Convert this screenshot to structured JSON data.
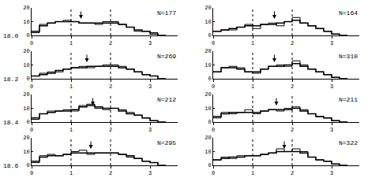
{
  "chart_data": [
    {
      "type": "histogram",
      "row_label": "18.0",
      "n_label": "N=177",
      "arrow_x": 1.25,
      "bins": [
        0,
        0.2,
        0.4,
        0.6,
        0.8,
        1.0,
        1.2,
        1.4,
        1.6,
        1.8,
        2.0,
        2.2,
        2.4,
        2.6,
        2.8,
        3.0,
        3.2,
        3.4
      ],
      "series": [
        {
          "values": [
            2,
            8,
            9,
            10,
            11,
            10,
            9,
            9,
            8,
            10,
            10,
            8,
            6,
            3,
            3,
            2,
            0
          ]
        },
        {
          "values": [
            3,
            7,
            9,
            10,
            10,
            10,
            9,
            9,
            9,
            9,
            9,
            8,
            6,
            4,
            3,
            1,
            0
          ]
        }
      ],
      "reference_lines": [
        1,
        2
      ],
      "xlim": [
        0,
        3.7
      ],
      "ylim": [
        0,
        20
      ],
      "xticks": [
        0,
        1,
        2,
        3
      ],
      "yticks": [
        0,
        10,
        20
      ],
      "color": "#000000"
    },
    {
      "type": "histogram",
      "n_label": "N=164",
      "arrow_x": 1.55,
      "bins": [
        0,
        0.2,
        0.4,
        0.6,
        0.8,
        1.0,
        1.2,
        1.4,
        1.6,
        1.8,
        2.0,
        2.2,
        2.4,
        2.6,
        2.8,
        3.0,
        3.2,
        3.4
      ],
      "series": [
        {
          "values": [
            3,
            4,
            4,
            6,
            8,
            5,
            8,
            9,
            7,
            10,
            13,
            9,
            7,
            5,
            3,
            1,
            0
          ]
        },
        {
          "values": [
            3,
            4,
            5,
            6,
            7,
            7,
            8,
            8,
            9,
            10,
            11,
            9,
            7,
            5,
            3,
            1,
            0
          ]
        }
      ],
      "reference_lines": [
        1,
        2
      ],
      "xlim": [
        0,
        3.7
      ],
      "ylim": [
        0,
        20
      ],
      "xticks": [
        0,
        1,
        2,
        3
      ],
      "yticks": [
        0,
        10,
        20
      ],
      "color": "#000000"
    },
    {
      "type": "histogram",
      "row_label": "18.2",
      "n_label": "N=269",
      "arrow_x": 1.4,
      "bins": [
        0,
        0.2,
        0.4,
        0.6,
        0.8,
        1.0,
        1.2,
        1.4,
        1.6,
        1.8,
        2.0,
        2.2,
        2.4,
        2.6,
        2.8,
        3.0,
        3.2,
        3.4
      ],
      "series": [
        {
          "values": [
            2,
            4,
            5,
            5,
            7,
            8,
            9,
            8,
            9,
            10,
            10,
            9,
            7,
            5,
            3,
            2,
            0
          ]
        },
        {
          "values": [
            2,
            3,
            4,
            6,
            7,
            8,
            8,
            9,
            9,
            9,
            9,
            8,
            7,
            5,
            3,
            2,
            0
          ]
        }
      ],
      "reference_lines": [
        1,
        2
      ],
      "xlim": [
        0,
        3.7
      ],
      "ylim": [
        0,
        20
      ],
      "xticks": [
        0,
        1,
        2,
        3
      ],
      "yticks": [
        0,
        10,
        20
      ],
      "color": "#000000"
    },
    {
      "type": "histogram",
      "n_label": "N=310",
      "arrow_x": 1.55,
      "bins": [
        0,
        0.2,
        0.4,
        0.6,
        0.8,
        1.0,
        1.2,
        1.4,
        1.6,
        1.8,
        2.0,
        2.2,
        2.4,
        2.6,
        2.8,
        3.0,
        3.2,
        3.4
      ],
      "series": [
        {
          "values": [
            5,
            8,
            9,
            8,
            5,
            4,
            7,
            9,
            10,
            9,
            13,
            10,
            7,
            5,
            3,
            1,
            0
          ]
        },
        {
          "values": [
            5,
            8,
            8,
            7,
            5,
            5,
            7,
            9,
            9,
            10,
            11,
            9,
            7,
            5,
            3,
            1,
            0
          ]
        }
      ],
      "reference_lines": [
        1,
        2
      ],
      "xlim": [
        0,
        3.7
      ],
      "ylim": [
        0,
        20
      ],
      "xticks": [
        0,
        1,
        2,
        3
      ],
      "yticks": [
        0,
        10,
        20
      ],
      "color": "#000000"
    },
    {
      "type": "histogram",
      "row_label": "18.4",
      "n_label": "N=212",
      "arrow_x": 1.55,
      "bins": [
        0,
        0.2,
        0.4,
        0.6,
        0.8,
        1.0,
        1.2,
        1.4,
        1.6,
        1.8,
        2.0,
        2.2,
        2.4,
        2.6,
        2.8,
        3.0,
        3.2,
        3.4
      ],
      "series": [
        {
          "values": [
            2,
            6,
            8,
            8,
            9,
            8,
            12,
            13,
            10,
            9,
            10,
            9,
            7,
            5,
            3,
            1,
            0
          ]
        },
        {
          "values": [
            3,
            6,
            7,
            8,
            8,
            9,
            11,
            12,
            11,
            10,
            10,
            8,
            6,
            5,
            3,
            1,
            0
          ]
        }
      ],
      "reference_lines": [
        1,
        2
      ],
      "xlim": [
        0,
        3.7
      ],
      "ylim": [
        0,
        20
      ],
      "xticks": [
        0,
        1,
        2,
        3
      ],
      "yticks": [
        0,
        10,
        20
      ],
      "color": "#000000"
    },
    {
      "type": "histogram",
      "n_label": "N=211",
      "arrow_x": 1.6,
      "bins": [
        0,
        0.2,
        0.4,
        0.6,
        0.8,
        1.0,
        1.2,
        1.4,
        1.6,
        1.8,
        2.0,
        2.2,
        2.4,
        2.6,
        2.8,
        3.0,
        3.2,
        3.4
      ],
      "series": [
        {
          "values": [
            3,
            7,
            6,
            7,
            9,
            6,
            8,
            9,
            8,
            10,
            11,
            9,
            6,
            4,
            3,
            1,
            0
          ]
        },
        {
          "values": [
            4,
            6,
            7,
            7,
            7,
            7,
            8,
            9,
            9,
            9,
            10,
            8,
            6,
            4,
            3,
            1,
            0
          ]
        }
      ],
      "reference_lines": [
        1,
        2
      ],
      "xlim": [
        0,
        3.7
      ],
      "ylim": [
        0,
        20
      ],
      "xticks": [
        0,
        1,
        2,
        3
      ],
      "yticks": [
        0,
        10,
        20
      ],
      "color": "#000000"
    },
    {
      "type": "histogram",
      "row_label": "18.6",
      "n_label": "N=295",
      "arrow_x": 1.5,
      "bins": [
        0,
        0.2,
        0.4,
        0.6,
        0.8,
        1.0,
        1.2,
        1.4,
        1.6,
        1.8,
        2.0,
        2.2,
        2.4,
        2.6,
        2.8,
        3.0,
        3.2,
        3.4
      ],
      "series": [
        {
          "values": [
            2,
            7,
            8,
            7,
            8,
            10,
            11,
            8,
            9,
            9,
            9,
            8,
            6,
            5,
            3,
            2,
            0
          ]
        },
        {
          "values": [
            3,
            6,
            7,
            7,
            8,
            9,
            9,
            9,
            9,
            9,
            9,
            8,
            7,
            5,
            3,
            2,
            0
          ]
        }
      ],
      "reference_lines": [
        1,
        2
      ],
      "xlim": [
        0,
        3.7
      ],
      "ylim": [
        0,
        20
      ],
      "xticks": [
        0,
        1,
        2,
        3
      ],
      "yticks": [
        0,
        10,
        20
      ],
      "color": "#000000"
    },
    {
      "type": "histogram",
      "n_label": "N=322",
      "arrow_x": 1.8,
      "bins": [
        0,
        0.2,
        0.4,
        0.6,
        0.8,
        1.0,
        1.2,
        1.4,
        1.6,
        1.8,
        2.0,
        2.2,
        2.4,
        2.6,
        2.8,
        3.0,
        3.2,
        3.4
      ],
      "series": [
        {
          "values": [
            4,
            6,
            5,
            7,
            7,
            7,
            8,
            9,
            12,
            10,
            12,
            10,
            6,
            4,
            3,
            1,
            0
          ]
        },
        {
          "values": [
            4,
            5,
            6,
            6,
            7,
            7,
            8,
            9,
            10,
            10,
            10,
            9,
            6,
            4,
            3,
            1,
            0
          ]
        }
      ],
      "reference_lines": [
        1,
        2
      ],
      "xlim": [
        0,
        3.7
      ],
      "ylim": [
        0,
        20
      ],
      "xticks": [
        0,
        1,
        2,
        3
      ],
      "yticks": [
        0,
        10,
        20
      ],
      "color": "#000000"
    }
  ]
}
